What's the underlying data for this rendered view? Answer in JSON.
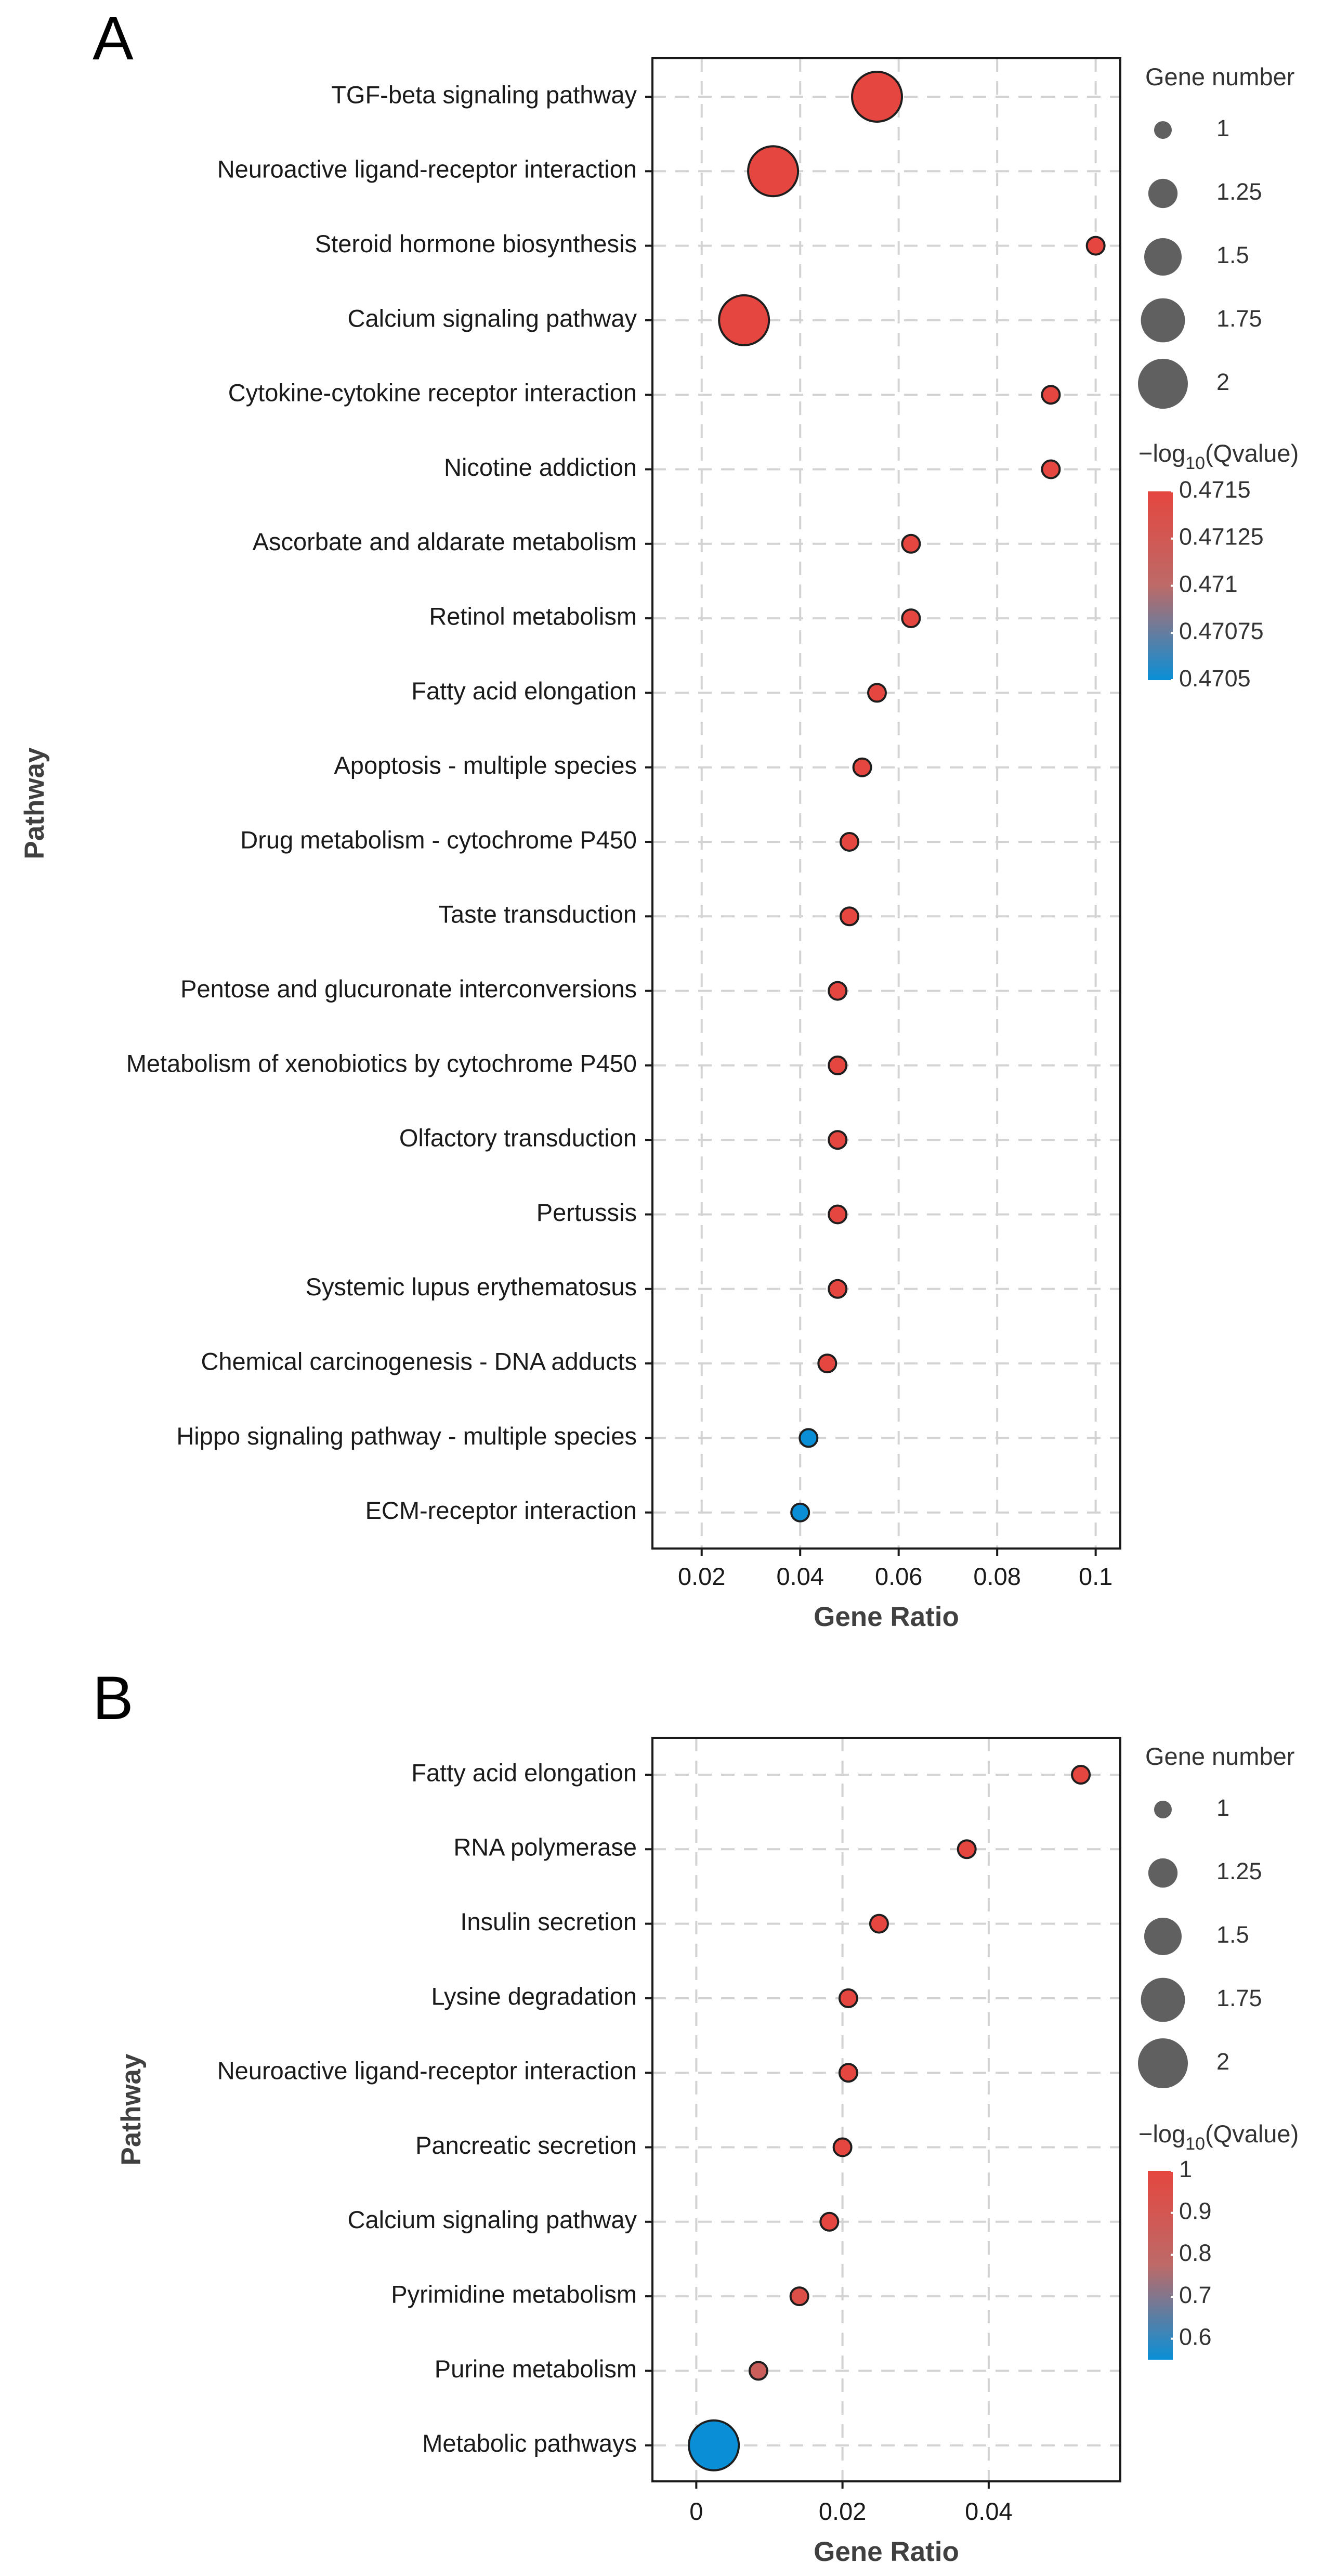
{
  "panels": [
    {
      "label": "A",
      "chart_data": {
        "type": "scatter",
        "title": "",
        "xlabel": "Gene Ratio",
        "ylabel": "Pathway",
        "xlim": [
          0.01,
          0.105
        ],
        "xticks": [
          0.02,
          0.04,
          0.06,
          0.08,
          0.1
        ],
        "xtick_labels": [
          "0.02",
          "0.04",
          "0.06",
          "0.08",
          "0.1"
        ],
        "categories": [
          "TGF-beta signaling pathway",
          "Neuroactive ligand-receptor interaction",
          "Steroid hormone biosynthesis",
          "Calcium signaling pathway",
          "Cytokine-cytokine receptor interaction",
          "Nicotine addiction",
          "Ascorbate and aldarate metabolism",
          "Retinol metabolism",
          "Fatty acid elongation",
          "Apoptosis - multiple species",
          "Drug metabolism - cytochrome P450",
          "Taste transduction",
          "Pentose and glucuronate interconversions",
          "Metabolism of xenobiotics by cytochrome P450",
          "Olfactory transduction",
          "Pertussis",
          "Systemic lupus erythematosus",
          "Chemical carcinogenesis - DNA adducts",
          "Hippo signaling pathway - multiple species",
          "ECM-receptor interaction"
        ],
        "gene_ratio": [
          0.0556,
          0.0345,
          0.1,
          0.0286,
          0.0909,
          0.0909,
          0.0625,
          0.0625,
          0.0556,
          0.0526,
          0.05,
          0.05,
          0.0476,
          0.0476,
          0.0476,
          0.0476,
          0.0476,
          0.0455,
          0.0417,
          0.04
        ],
        "gene_number": [
          2,
          2,
          1,
          2,
          1,
          1,
          1,
          1,
          1,
          1,
          1,
          1,
          1,
          1,
          1,
          1,
          1,
          1,
          1,
          1
        ],
        "neg_log10_qvalue": [
          0.4715,
          0.4715,
          0.4715,
          0.4715,
          0.4715,
          0.4715,
          0.4715,
          0.4715,
          0.4715,
          0.4715,
          0.4715,
          0.4715,
          0.4715,
          0.4715,
          0.4715,
          0.4715,
          0.4715,
          0.4715,
          0.4705,
          0.4705
        ],
        "size_legend": {
          "title": "Gene number",
          "values": [
            1,
            1.25,
            1.5,
            1.75,
            2
          ],
          "labels": [
            "1",
            "1.25",
            "1.5",
            "1.75",
            "2"
          ]
        },
        "color_legend": {
          "title_prefix": "−log",
          "title_sub": "10",
          "title_suffix": "(Qvalue)",
          "range": [
            0.4705,
            0.4715
          ],
          "ticks": [
            0.4715,
            0.47125,
            0.471,
            0.47075,
            0.4705
          ],
          "labels": [
            "0.4715",
            "0.47125",
            "0.471",
            "0.47075",
            "0.4705"
          ],
          "low_color": "#0a8fd6",
          "high_color": "#e5463f"
        }
      }
    },
    {
      "label": "B",
      "chart_data": {
        "type": "scatter",
        "title": "",
        "xlabel": "Gene Ratio",
        "ylabel": "Pathway",
        "xlim": [
          -0.006,
          0.058
        ],
        "xticks": [
          0,
          0.02,
          0.04
        ],
        "xtick_labels": [
          "0",
          "0.02",
          "0.04"
        ],
        "categories": [
          "Fatty acid elongation",
          "RNA polymerase",
          "Insulin secretion",
          "Lysine degradation",
          "Neuroactive ligand-receptor interaction",
          "Pancreatic secretion",
          "Calcium signaling pathway",
          "Pyrimidine metabolism",
          "Purine metabolism",
          "Metabolic pathways"
        ],
        "gene_ratio": [
          0.0526,
          0.037,
          0.025,
          0.0208,
          0.0208,
          0.02,
          0.0182,
          0.0141,
          0.0085,
          0.0024
        ],
        "gene_number": [
          1,
          1,
          1,
          1,
          1,
          1,
          1,
          1,
          1,
          2
        ],
        "neg_log10_qvalue": [
          1.0,
          1.0,
          1.0,
          1.0,
          1.0,
          1.0,
          1.0,
          0.95,
          0.85,
          0.55
        ],
        "size_legend": {
          "title": "Gene number",
          "values": [
            1,
            1.25,
            1.5,
            1.75,
            2
          ],
          "labels": [
            "1",
            "1.25",
            "1.5",
            "1.75",
            "2"
          ]
        },
        "color_legend": {
          "title_prefix": "−log",
          "title_sub": "10",
          "title_suffix": "(Qvalue)",
          "range": [
            0.55,
            1.0
          ],
          "ticks": [
            1,
            0.9,
            0.8,
            0.7,
            0.6
          ],
          "labels": [
            "1",
            "0.9",
            "0.8",
            "0.7",
            "0.6"
          ],
          "low_color": "#0a8fd6",
          "high_color": "#e5463f"
        }
      }
    }
  ]
}
